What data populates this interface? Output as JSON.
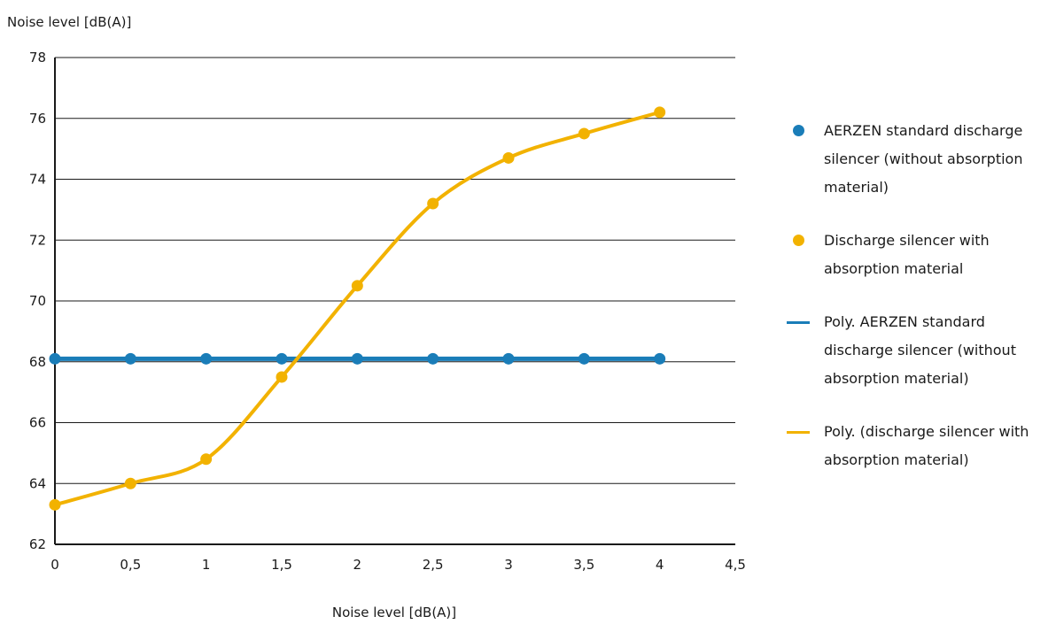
{
  "chart_data": {
    "type": "line",
    "ylabel": "Noise level [dB(A)]",
    "xlabel": "Noise level [dB(A)]",
    "xlim": [
      0,
      4.5
    ],
    "ylim": [
      62,
      78
    ],
    "x_ticks": [
      "0",
      "0,5",
      "1",
      "1,5",
      "2",
      "2,5",
      "3",
      "3,5",
      "4",
      "4,5"
    ],
    "y_ticks": [
      "62",
      "64",
      "66",
      "68",
      "70",
      "72",
      "74",
      "76",
      "78"
    ],
    "grid": "horizontal",
    "legend_position": "right",
    "series": [
      {
        "name": "AERZEN standard discharge silencer (without absorption material)",
        "kind": "points",
        "color": "#1a7db8",
        "x": [
          0,
          0.5,
          1.0,
          1.5,
          2.0,
          2.5,
          3.0,
          3.5,
          4.0
        ],
        "y": [
          68.1,
          68.1,
          68.1,
          68.1,
          68.1,
          68.1,
          68.1,
          68.1,
          68.1
        ]
      },
      {
        "name": "Discharge silencer with absorption material",
        "kind": "points",
        "color": "#f2b200",
        "x": [
          0,
          0.5,
          1.0,
          1.5,
          2.0,
          2.5,
          3.0,
          3.5,
          4.0
        ],
        "y": [
          63.3,
          64.0,
          64.8,
          67.5,
          70.5,
          73.2,
          74.7,
          75.5,
          76.2
        ]
      },
      {
        "name": "Poly. AERZEN standard discharge silencer (without absorption material)",
        "kind": "trendline",
        "color": "#1a7db8"
      },
      {
        "name": "Poly. (discharge silencer with absorption material)",
        "kind": "trendline",
        "color": "#f2b200"
      }
    ]
  }
}
